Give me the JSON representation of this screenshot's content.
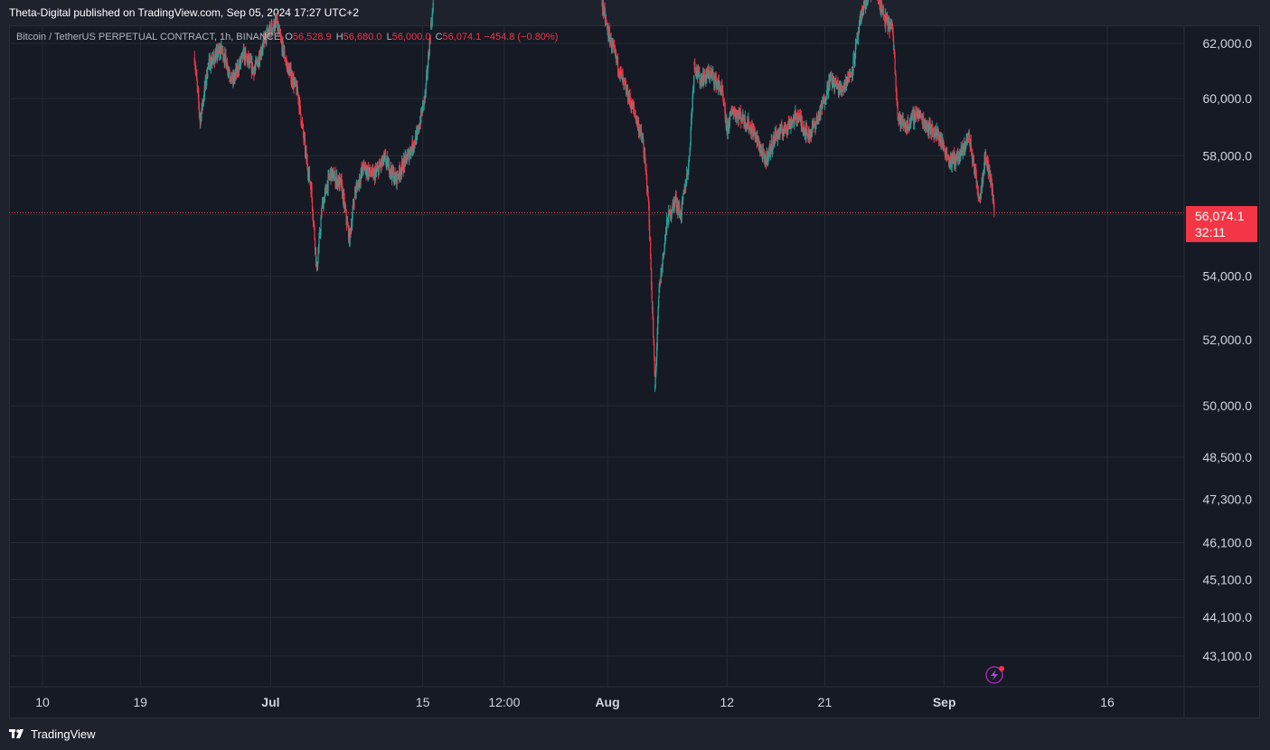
{
  "header": {
    "publisher_line": "Theta-Digital published on TradingView.com, Sep 05, 2024 17:27 UTC+2"
  },
  "legend": {
    "symbol": "Bitcoin / TetherUS PERPETUAL CONTRACT, 1h, BINANCE",
    "open_label": "O",
    "open": "56,528.9",
    "high_label": "H",
    "high": "56,680.0",
    "low_label": "L",
    "low": "56,000.0",
    "close_label": "C",
    "close": "56,074.1",
    "change": "−454.8 (−0.80%)"
  },
  "price_tag": {
    "price": "56,074.1",
    "countdown": "32:11"
  },
  "footer": {
    "brand": "TradingView"
  },
  "colors": {
    "background": "#161a25",
    "up": "#26a69a",
    "down": "#f23645",
    "grid": "#262a35",
    "axis_text": "#d1d4dc"
  },
  "chart_data": {
    "type": "candlestick",
    "symbol": "BTCUSDT.P",
    "interval": "1h",
    "scale": "log",
    "grid": true,
    "y_ticks": [
      "62,000.0",
      "60,000.0",
      "58,000.0",
      "56,000.0",
      "54,000.0",
      "52,000.0",
      "50,000.0",
      "48,500.0",
      "47,300.0",
      "46,100.0",
      "45,100.0",
      "44,100.0",
      "43,100.0"
    ],
    "y_tick_values": [
      62000,
      60000,
      58000,
      56000,
      54000,
      52000,
      50000,
      48500,
      47300,
      46100,
      45100,
      44100,
      43100
    ],
    "x_ticks": [
      "10",
      "19",
      "Jul",
      "15",
      "12:00",
      "Aug",
      "12",
      "21",
      "Sep",
      "16"
    ],
    "x_tick_dates": [
      "2024-06-10",
      "2024-06-19",
      "2024-07-01",
      "2024-07-15",
      "2024-07-22T12:00",
      "2024-08-01",
      "2024-08-12",
      "2024-08-21",
      "2024-09-01",
      "2024-09-16"
    ],
    "last_price": 56074.1,
    "price_path": [
      [
        "2024-06-24T00:00",
        61500
      ],
      [
        "2024-06-24T12:00",
        59200
      ],
      [
        "2024-06-25T06:00",
        61200
      ],
      [
        "2024-06-26T12:00",
        61800
      ],
      [
        "2024-06-27T12:00",
        60600
      ],
      [
        "2024-06-28T12:00",
        61600
      ],
      [
        "2024-06-29T12:00",
        61000
      ],
      [
        "2024-06-30T12:00",
        62200
      ],
      [
        "2024-07-01T12:00",
        62800
      ],
      [
        "2024-07-02T12:00",
        61200
      ],
      [
        "2024-07-03T12:00",
        60200
      ],
      [
        "2024-07-04T06:00",
        58000
      ],
      [
        "2024-07-04T18:00",
        56800
      ],
      [
        "2024-07-05T06:00",
        54200
      ],
      [
        "2024-07-05T18:00",
        56300
      ],
      [
        "2024-07-06T12:00",
        57400
      ],
      [
        "2024-07-07T12:00",
        57000
      ],
      [
        "2024-07-08T06:00",
        55200
      ],
      [
        "2024-07-08T18:00",
        56700
      ],
      [
        "2024-07-09T12:00",
        57600
      ],
      [
        "2024-07-10T12:00",
        57300
      ],
      [
        "2024-07-11T12:00",
        57900
      ],
      [
        "2024-07-12T12:00",
        57200
      ],
      [
        "2024-07-13T12:00",
        57900
      ],
      [
        "2024-07-14T12:00",
        58700
      ],
      [
        "2024-07-15T06:00",
        60200
      ],
      [
        "2024-07-15T18:00",
        62600
      ],
      [
        "2024-07-16T00:00",
        63500
      ],
      [
        "2024-07-31T12:00",
        63500
      ],
      [
        "2024-08-01T00:00",
        62500
      ],
      [
        "2024-08-01T12:00",
        61800
      ],
      [
        "2024-08-02T12:00",
        60500
      ],
      [
        "2024-08-03T12:00",
        59500
      ],
      [
        "2024-08-04T06:00",
        58500
      ],
      [
        "2024-08-04T18:00",
        56600
      ],
      [
        "2024-08-05T03:00",
        53000
      ],
      [
        "2024-08-05T09:00",
        50500
      ],
      [
        "2024-08-05T18:00",
        53500
      ],
      [
        "2024-08-06T12:00",
        55800
      ],
      [
        "2024-08-07T06:00",
        56500
      ],
      [
        "2024-08-07T18:00",
        56000
      ],
      [
        "2024-08-08T12:00",
        57800
      ],
      [
        "2024-08-09T00:00",
        61200
      ],
      [
        "2024-08-09T12:00",
        60700
      ],
      [
        "2024-08-10T12:00",
        60900
      ],
      [
        "2024-08-11T12:00",
        60300
      ],
      [
        "2024-08-12T00:00",
        58900
      ],
      [
        "2024-08-12T12:00",
        59600
      ],
      [
        "2024-08-13T12:00",
        59300
      ],
      [
        "2024-08-14T12:00",
        58800
      ],
      [
        "2024-08-15T12:00",
        57800
      ],
      [
        "2024-08-16T12:00",
        58700
      ],
      [
        "2024-08-17T12:00",
        59000
      ],
      [
        "2024-08-18T12:00",
        59400
      ],
      [
        "2024-08-19T12:00",
        58700
      ],
      [
        "2024-08-20T12:00",
        59400
      ],
      [
        "2024-08-21T12:00",
        60700
      ],
      [
        "2024-08-22T12:00",
        60300
      ],
      [
        "2024-08-23T12:00",
        61000
      ],
      [
        "2024-08-24T12:00",
        63300
      ],
      [
        "2024-08-25T12:00",
        64200
      ],
      [
        "2024-08-26T12:00",
        62900
      ],
      [
        "2024-08-27T06:00",
        62500
      ],
      [
        "2024-08-27T18:00",
        59300
      ],
      [
        "2024-08-28T12:00",
        59000
      ],
      [
        "2024-08-29T12:00",
        59500
      ],
      [
        "2024-08-30T12:00",
        59000
      ],
      [
        "2024-08-31T12:00",
        58700
      ],
      [
        "2024-09-01T12:00",
        57800
      ],
      [
        "2024-09-02T12:00",
        58000
      ],
      [
        "2024-09-03T06:00",
        58700
      ],
      [
        "2024-09-03T18:00",
        57600
      ],
      [
        "2024-09-04T06:00",
        56500
      ],
      [
        "2024-09-04T18:00",
        58000
      ],
      [
        "2024-09-05T06:00",
        57300
      ],
      [
        "2024-09-05T15:00",
        56074.1
      ]
    ]
  }
}
